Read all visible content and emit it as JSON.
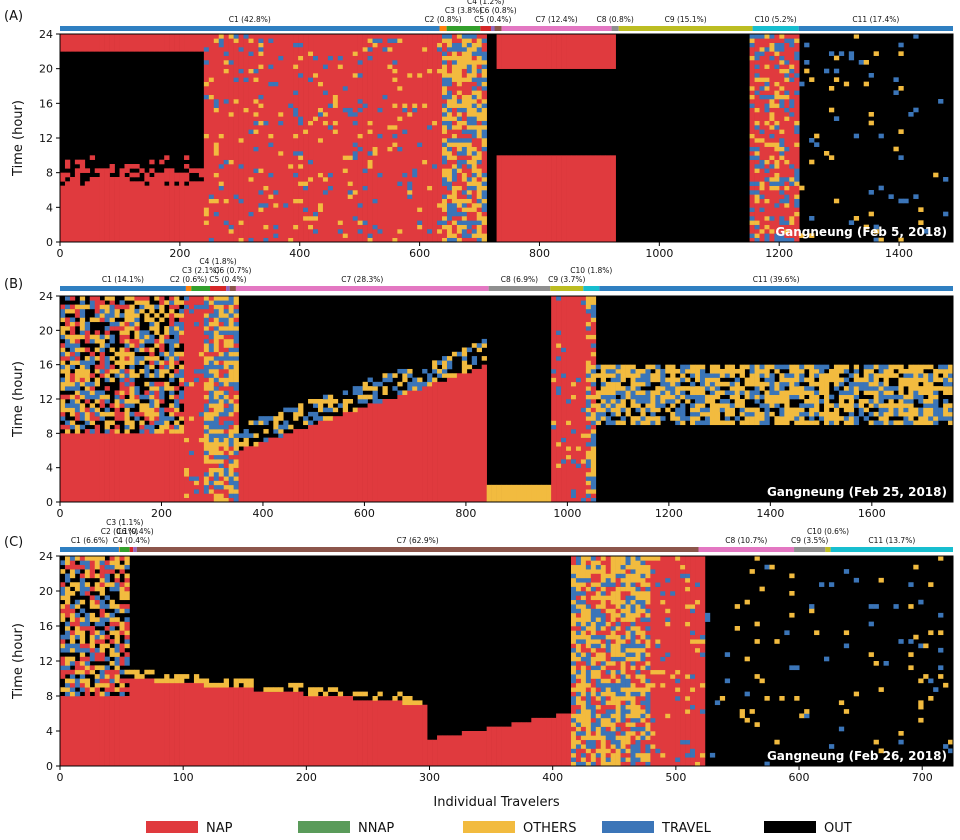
{
  "colors": {
    "NAP": "#e03a3e",
    "NNAP": "#5a9b5a",
    "OTHERS": "#f2bb3f",
    "TRAVEL": "#3b75b8",
    "OUT": "#000000",
    "cluster_palette": [
      "#2f7fc1",
      "#ff7f0e",
      "#33a02c",
      "#d62728",
      "#9467bd",
      "#8c564b",
      "#e377c2",
      "#8f8f8f",
      "#bcbd22",
      "#17becf",
      "#2f7fc1"
    ]
  },
  "legend": [
    {
      "key": "NAP",
      "label": "NAP"
    },
    {
      "key": "NNAP",
      "label": "NNAP"
    },
    {
      "key": "OTHERS",
      "label": "OTHERS"
    },
    {
      "key": "TRAVEL",
      "label": "TRAVEL"
    },
    {
      "key": "OUT",
      "label": "OUT"
    }
  ],
  "chart_data": [
    {
      "type": "heatmap",
      "panel": "(A)",
      "place_label": "Gangneung (Feb 5, 2018)",
      "ylabel": "Time (hour)",
      "xlabel": "",
      "xlim": [
        0,
        1490
      ],
      "ylim": [
        0,
        24
      ],
      "xticks": [
        0,
        200,
        400,
        600,
        800,
        1000,
        1200,
        1400
      ],
      "yticks": [
        0,
        4,
        8,
        12,
        16,
        20,
        24
      ],
      "categories": [
        "NAP",
        "NNAP",
        "OTHERS",
        "TRAVEL",
        "OUT"
      ],
      "clusters": [
        {
          "label": "C1 (42.8%)",
          "pct": 42.8
        },
        {
          "label": "C2 (0.8%)",
          "pct": 0.8
        },
        {
          "label": "C3 (3.8%)",
          "pct": 3.8
        },
        {
          "label": "C4 (1.2%)",
          "pct": 1.2
        },
        {
          "label": "C5 (0.4%)",
          "pct": 0.4
        },
        {
          "label": "C6 (0.8%)",
          "pct": 0.8
        },
        {
          "label": "C7 (12.4%)",
          "pct": 12.4
        },
        {
          "label": "C8 (0.8%)",
          "pct": 0.8
        },
        {
          "label": "C9 (15.1%)",
          "pct": 15.1
        },
        {
          "label": "C10 (5.2%)",
          "pct": 5.2
        },
        {
          "label": "C11 (17.4%)",
          "pct": 17.4
        }
      ]
    },
    {
      "type": "heatmap",
      "panel": "(B)",
      "place_label": "Gangneung (Feb 25, 2018)",
      "ylabel": "Time (hour)",
      "xlabel": "",
      "xlim": [
        0,
        1760
      ],
      "ylim": [
        0,
        24
      ],
      "xticks": [
        0,
        200,
        400,
        600,
        800,
        1000,
        1200,
        1400,
        1600
      ],
      "yticks": [
        0,
        4,
        8,
        12,
        16,
        20,
        24
      ],
      "categories": [
        "NAP",
        "NNAP",
        "OTHERS",
        "TRAVEL",
        "OUT"
      ],
      "clusters": [
        {
          "label": "C1 (14.1%)",
          "pct": 14.1
        },
        {
          "label": "C2 (0.6%)",
          "pct": 0.6
        },
        {
          "label": "C3 (2.1%)",
          "pct": 2.1
        },
        {
          "label": "C4 (1.8%)",
          "pct": 1.8
        },
        {
          "label": "C5 (0.4%)",
          "pct": 0.4
        },
        {
          "label": "C6 (0.7%)",
          "pct": 0.7
        },
        {
          "label": "C7 (28.3%)",
          "pct": 28.3
        },
        {
          "label": "C8 (6.9%)",
          "pct": 6.9
        },
        {
          "label": "C9 (3.7%)",
          "pct": 3.7
        },
        {
          "label": "C10 (1.8%)",
          "pct": 1.8
        },
        {
          "label": "C11 (39.6%)",
          "pct": 39.6
        }
      ]
    },
    {
      "type": "heatmap",
      "panel": "(C)",
      "place_label": "Gangneung (Feb 26, 2018)",
      "ylabel": "Time (hour)",
      "xlabel": "Individual Travelers",
      "xlim": [
        0,
        725
      ],
      "ylim": [
        0,
        24
      ],
      "xticks": [
        0,
        100,
        200,
        300,
        400,
        500,
        600,
        700
      ],
      "yticks": [
        0,
        4,
        8,
        12,
        16,
        20,
        24
      ],
      "categories": [
        "NAP",
        "NNAP",
        "OTHERS",
        "TRAVEL",
        "OUT"
      ],
      "clusters": [
        {
          "label": "C1 (6.6%)",
          "pct": 6.6
        },
        {
          "label": "C2 (0.1%)",
          "pct": 0.1
        },
        {
          "label": "C3 (1.1%)",
          "pct": 1.1
        },
        {
          "label": "C4 (0.4%)",
          "pct": 0.4
        },
        {
          "label": "C6 (0.4%)",
          "pct": 0.4
        },
        {
          "label": "C7 (62.9%)",
          "pct": 62.9
        },
        {
          "label": "C8 (10.7%)",
          "pct": 10.7
        },
        {
          "label": "C9 (3.5%)",
          "pct": 3.5
        },
        {
          "label": "C10 (0.6%)",
          "pct": 0.6
        },
        {
          "label": "C11 (13.7%)",
          "pct": 13.7
        }
      ]
    }
  ]
}
